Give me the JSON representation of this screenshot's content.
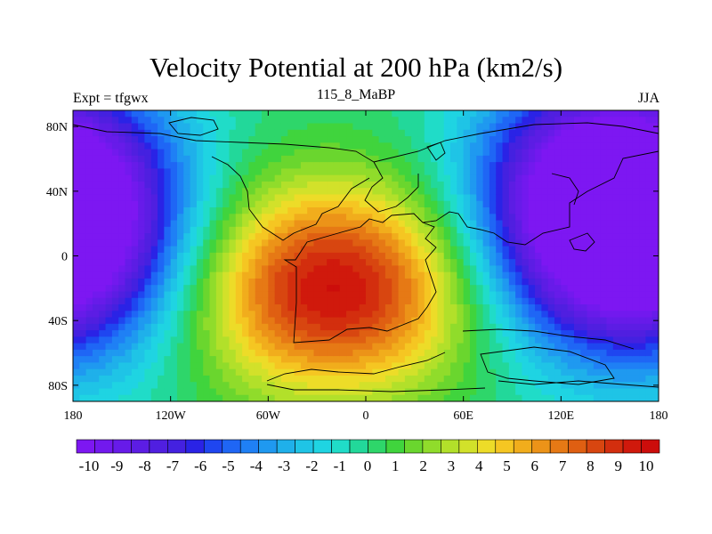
{
  "title": "Velocity Potential at 200 hPa (km2/s)",
  "subtitle_left": "Expt = tfgwx",
  "subtitle_center": "115_8_MaBP",
  "subtitle_right": "JJA",
  "map": {
    "lon_range": [
      -180,
      180
    ],
    "lat_range": [
      -90,
      90
    ],
    "lon_ticks": [
      {
        "value": -180,
        "label": "180"
      },
      {
        "value": -120,
        "label": "120W"
      },
      {
        "value": -60,
        "label": "60W"
      },
      {
        "value": 0,
        "label": "0"
      },
      {
        "value": 60,
        "label": "60E"
      },
      {
        "value": 120,
        "label": "120E"
      },
      {
        "value": 180,
        "label": "180"
      }
    ],
    "lat_ticks": [
      {
        "value": 80,
        "label": "80N"
      },
      {
        "value": 40,
        "label": "40N"
      },
      {
        "value": 0,
        "label": "0"
      },
      {
        "value": -40,
        "label": "40S"
      },
      {
        "value": -80,
        "label": "80S"
      }
    ],
    "field_features": [
      {
        "name": "divergence-max",
        "lon": -20,
        "lat": -20,
        "value": 10.5
      },
      {
        "name": "convergence-min-east",
        "lon": 135,
        "lat": 30,
        "value": -10.5
      },
      {
        "name": "convergence-min-west",
        "lon": -178,
        "lat": 20,
        "value": -10.5
      }
    ]
  },
  "colorbar": {
    "labels": [
      "-10",
      "-9",
      "-8",
      "-7",
      "-6",
      "-5",
      "-4",
      "-3",
      "-2",
      "-1",
      "0",
      "1",
      "2",
      "3",
      "4",
      "5",
      "6",
      "7",
      "8",
      "9",
      "10"
    ],
    "colors": [
      "#7d17f2",
      "#7219ee",
      "#671be9",
      "#5c1de4",
      "#501fe0",
      "#4421e0",
      "#2a23e6",
      "#1f46f0",
      "#1f66f5",
      "#1f80f5",
      "#1f99f0",
      "#1fb0ea",
      "#1fc4e6",
      "#1fd4e2",
      "#20dcc8",
      "#22d89a",
      "#2ed66a",
      "#40d43d",
      "#6ad62e",
      "#90dc2b",
      "#b2e02a",
      "#d2e12a",
      "#eddc28",
      "#f5c622",
      "#f1ad1c",
      "#ec9318",
      "#e67915",
      "#df5f12",
      "#d84610",
      "#d32e0e",
      "#d0190c",
      "#cc0d0b"
    ]
  }
}
